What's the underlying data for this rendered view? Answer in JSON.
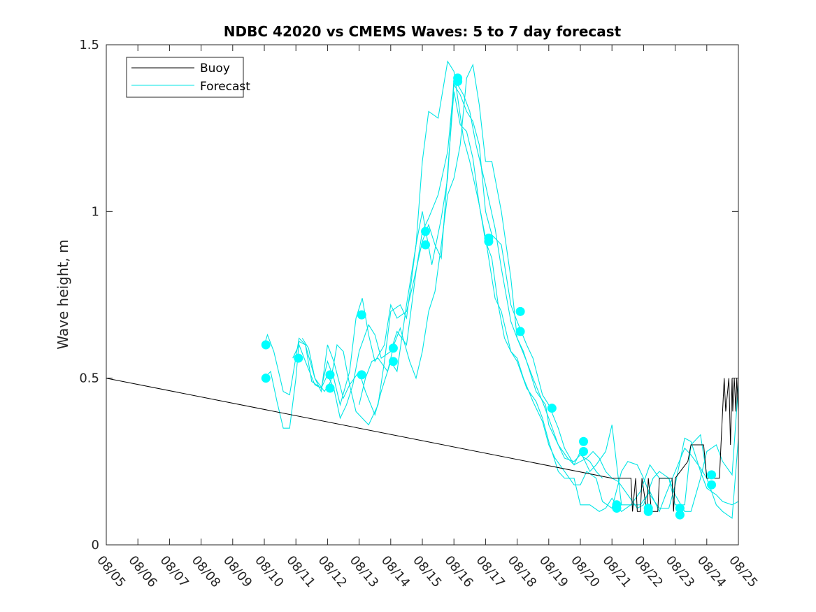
{
  "chart_data": {
    "type": "line",
    "title": "NDBC 42020 vs CMEMS Waves: 5 to 7 day forecast",
    "xlabel": "",
    "ylabel": "Wave height, m",
    "xlim": [
      0,
      20
    ],
    "ylim": [
      0,
      1.5
    ],
    "x_tick_labels": [
      "08/05",
      "08/06",
      "08/07",
      "08/08",
      "08/09",
      "08/10",
      "08/11",
      "08/12",
      "08/13",
      "08/14",
      "08/15",
      "08/16",
      "08/17",
      "08/18",
      "08/19",
      "08/20",
      "08/21",
      "08/22",
      "08/23",
      "08/24",
      "08/25"
    ],
    "y_ticks": [
      0,
      0.5,
      1,
      1.5
    ],
    "y_tick_labels": [
      "0",
      "0.5",
      "1",
      "1.5"
    ],
    "legend": {
      "position": "top-left",
      "entries": [
        {
          "label": "Buoy",
          "color": "#000000"
        },
        {
          "label": "Forecast",
          "color": "#00e5e5"
        }
      ]
    },
    "colors": {
      "buoy": "#000000",
      "forecast": "#00e5e5",
      "marker": "#00ffff"
    },
    "buoy": {
      "name": "Buoy",
      "x": [
        0,
        16.0,
        16.6,
        16.65,
        16.75,
        16.8,
        16.9,
        16.95,
        17.1,
        17.15,
        17.25,
        17.3,
        17.45,
        17.5,
        17.9,
        17.95,
        18.0,
        18.4,
        18.5,
        18.5,
        18.9,
        19.0,
        19.4,
        19.45,
        19.5,
        19.55,
        19.6,
        19.7,
        19.75,
        19.8,
        19.82,
        19.87,
        19.92,
        19.95,
        20.0
      ],
      "y": [
        0.5,
        0.2,
        0.2,
        0.1,
        0.2,
        0.1,
        0.1,
        0.2,
        0.1,
        0.2,
        0.1,
        0.1,
        0.1,
        0.2,
        0.2,
        0.1,
        0.2,
        0.25,
        0.3,
        0.3,
        0.3,
        0.2,
        0.2,
        0.3,
        0.4,
        0.5,
        0.4,
        0.5,
        0.3,
        0.5,
        0.4,
        0.5,
        0.4,
        0.5,
        0.4
      ]
    },
    "forecast": [
      {
        "name": "Forecast 1",
        "x": [
          5.0,
          5.1,
          5.3,
          5.6,
          5.8,
          6.1,
          6.3,
          6.6,
          6.8,
          7.0,
          7.2,
          7.5,
          7.7,
          8.0,
          8.2,
          8.5,
          8.7,
          9.0,
          9.2,
          9.5,
          9.8,
          10.0,
          10.2,
          10.5,
          10.8,
          11.0,
          11.3,
          11.5,
          11.8,
          12.0,
          12.3,
          12.5,
          12.8,
          13.0,
          13.3,
          13.6,
          13.8,
          14.0,
          14.3,
          14.5,
          14.8,
          15.0,
          15.3,
          15.6,
          15.8,
          16.0,
          16.3,
          16.6,
          16.9,
          17.2,
          17.5,
          17.7,
          18.0,
          18.3,
          18.5,
          18.8,
          19.0,
          19.3,
          19.5,
          19.8,
          20.0
        ],
        "y": [
          0.6,
          0.63,
          0.58,
          0.46,
          0.45,
          0.62,
          0.6,
          0.5,
          0.46,
          0.6,
          0.55,
          0.44,
          0.48,
          0.52,
          0.46,
          0.39,
          0.46,
          0.55,
          0.52,
          0.72,
          0.9,
          1.15,
          1.3,
          1.28,
          1.45,
          1.42,
          1.22,
          1.15,
          1.02,
          0.92,
          0.74,
          0.7,
          0.58,
          0.55,
          0.47,
          0.43,
          0.38,
          0.31,
          0.22,
          0.2,
          0.2,
          0.12,
          0.12,
          0.1,
          0.11,
          0.14,
          0.1,
          0.12,
          0.12,
          0.16,
          0.1,
          0.15,
          0.22,
          0.29,
          0.27,
          0.23,
          0.2,
          0.12,
          0.1,
          0.08,
          0.32
        ]
      },
      {
        "name": "Forecast 2",
        "x": [
          5.0,
          5.2,
          5.4,
          5.6,
          5.8,
          6.0,
          6.1,
          6.3,
          6.5,
          6.8,
          7.0,
          7.2,
          7.4,
          7.7,
          7.9,
          8.1,
          8.3,
          8.5,
          8.8,
          9.0,
          9.2,
          9.5,
          9.7,
          10.0,
          10.2,
          10.4,
          10.6,
          10.8,
          11.0,
          11.2,
          11.4,
          11.6,
          11.8,
          12.0,
          12.2,
          12.4,
          12.6,
          12.8,
          13.0,
          13.2,
          13.5,
          13.8,
          14.0,
          14.2,
          14.5,
          14.8,
          15.0,
          15.2,
          15.5,
          15.7,
          16.0,
          16.3,
          16.5,
          16.8,
          17.0,
          17.2,
          17.5,
          17.8,
          18.0,
          18.3,
          18.5,
          18.8,
          19.0,
          19.3,
          19.5,
          19.8,
          20.0
        ],
        "y": [
          0.5,
          0.52,
          0.43,
          0.35,
          0.35,
          0.5,
          0.61,
          0.6,
          0.49,
          0.47,
          0.55,
          0.5,
          0.42,
          0.52,
          0.68,
          0.74,
          0.63,
          0.55,
          0.6,
          0.72,
          0.68,
          0.7,
          0.78,
          0.91,
          0.96,
          0.9,
          0.86,
          1.12,
          1.36,
          1.26,
          1.24,
          1.16,
          1.02,
          0.91,
          0.86,
          0.72,
          0.62,
          0.58,
          0.56,
          0.5,
          0.43,
          0.37,
          0.3,
          0.26,
          0.22,
          0.18,
          0.18,
          0.22,
          0.2,
          0.13,
          0.11,
          0.22,
          0.25,
          0.24,
          0.2,
          0.15,
          0.11,
          0.11,
          0.18,
          0.32,
          0.31,
          0.22,
          0.17,
          0.15,
          0.13,
          0.12,
          0.13
        ]
      },
      {
        "name": "Forecast 3",
        "x": [
          5.9,
          6.1,
          6.3,
          6.6,
          6.8,
          7.0,
          7.2,
          7.4,
          7.6,
          7.8,
          8.0,
          8.3,
          8.5,
          8.7,
          9.0,
          9.2,
          9.5,
          9.8,
          10.0,
          10.2,
          10.5,
          10.8,
          11.0,
          11.2,
          11.4,
          11.6,
          11.8,
          12.0,
          12.2,
          12.5,
          12.8,
          13.0,
          13.3,
          13.5,
          13.8,
          14.0,
          14.3,
          14.5,
          14.8,
          15.0,
          15.3,
          15.5,
          15.8,
          16.0,
          16.3,
          16.6,
          16.9,
          17.2,
          17.5,
          17.8,
          18.0,
          18.3,
          18.5,
          18.8,
          19.0
        ],
        "y": [
          0.56,
          0.6,
          0.55,
          0.48,
          0.47,
          0.51,
          0.47,
          0.38,
          0.42,
          0.48,
          0.58,
          0.66,
          0.63,
          0.56,
          0.58,
          0.64,
          0.6,
          0.82,
          0.94,
          0.98,
          1.05,
          1.18,
          1.38,
          1.35,
          1.3,
          1.27,
          1.2,
          1.0,
          0.93,
          0.9,
          0.72,
          0.67,
          0.6,
          0.56,
          0.45,
          0.42,
          0.35,
          0.29,
          0.24,
          0.28,
          0.22,
          0.24,
          0.28,
          0.36,
          0.12,
          0.12,
          0.16,
          0.24,
          0.2,
          0.2,
          0.12,
          0.12,
          0.3,
          0.33,
          0.21
        ]
      },
      {
        "name": "Forecast 4",
        "x": [
          6.2,
          6.4,
          6.6,
          6.9,
          7.1,
          7.3,
          7.5,
          7.7,
          7.9,
          8.1,
          8.3,
          8.6,
          8.8,
          9.0,
          9.3,
          9.5,
          9.8,
          10.0,
          10.3,
          10.6,
          10.8,
          11.0,
          11.3,
          11.5,
          11.7,
          12.0,
          12.3,
          12.5,
          12.8,
          13.0,
          13.3,
          13.5,
          13.8,
          14.0,
          14.3,
          14.5,
          14.8,
          15.0,
          15.3,
          15.5,
          15.7
        ],
        "y": [
          0.62,
          0.59,
          0.5,
          0.46,
          0.49,
          0.6,
          0.58,
          0.48,
          0.4,
          0.38,
          0.36,
          0.42,
          0.55,
          0.7,
          0.72,
          0.68,
          0.9,
          1.0,
          0.84,
          0.98,
          1.1,
          1.4,
          1.35,
          1.3,
          1.2,
          1.08,
          0.95,
          0.83,
          0.67,
          0.62,
          0.55,
          0.5,
          0.43,
          0.38,
          0.3,
          0.26,
          0.25,
          0.27,
          0.25,
          0.22,
          0.2
        ]
      },
      {
        "name": "Forecast 5",
        "x": [
          8.0,
          8.2,
          8.4,
          8.6,
          8.9,
          9.1,
          9.3,
          9.6,
          9.8,
          10.0,
          10.2,
          10.4,
          10.6,
          10.8,
          11.0,
          11.2,
          11.4,
          11.6,
          11.8,
          12.0,
          12.2,
          12.5,
          12.8,
          13.0,
          13.2,
          13.4,
          13.6,
          13.9,
          14.0,
          14.3,
          14.6,
          14.8,
          15.0,
          15.2,
          15.4,
          15.6,
          15.8,
          16.0,
          16.2,
          16.5,
          16.8,
          17.0,
          17.3,
          17.5,
          17.8,
          18.0,
          18.3,
          18.5,
          18.8,
          19.0,
          19.3,
          19.5,
          19.8,
          20.0
        ],
        "y": [
          0.42,
          0.5,
          0.55,
          0.56,
          0.52,
          0.6,
          0.65,
          0.55,
          0.5,
          0.58,
          0.7,
          0.76,
          0.9,
          1.05,
          1.1,
          1.2,
          1.4,
          1.44,
          1.32,
          1.15,
          1.15,
          1.0,
          0.8,
          0.62,
          0.58,
          0.52,
          0.46,
          0.42,
          0.36,
          0.3,
          0.26,
          0.24,
          0.25,
          0.26,
          0.28,
          0.26,
          0.22,
          0.2,
          0.19,
          0.15,
          0.11,
          0.12,
          0.2,
          0.22,
          0.2,
          0.15,
          0.1,
          0.1,
          0.2,
          0.28,
          0.3,
          0.25,
          0.21,
          0.48
        ]
      }
    ],
    "markers": {
      "x": [
        5.05,
        5.05,
        6.08,
        7.08,
        7.08,
        8.08,
        8.08,
        9.08,
        9.08,
        10.1,
        10.1,
        11.12,
        11.12,
        12.1,
        12.1,
        13.1,
        13.1,
        14.1,
        15.1,
        15.1,
        16.15,
        16.15,
        17.15,
        17.15,
        18.15,
        18.15,
        19.15,
        19.15
      ],
      "y": [
        0.6,
        0.5,
        0.56,
        0.51,
        0.47,
        0.69,
        0.51,
        0.59,
        0.55,
        0.94,
        0.9,
        1.4,
        1.39,
        0.92,
        0.91,
        0.7,
        0.64,
        0.41,
        0.31,
        0.28,
        0.12,
        0.11,
        0.11,
        0.1,
        0.11,
        0.09,
        0.21,
        0.18
      ]
    }
  }
}
